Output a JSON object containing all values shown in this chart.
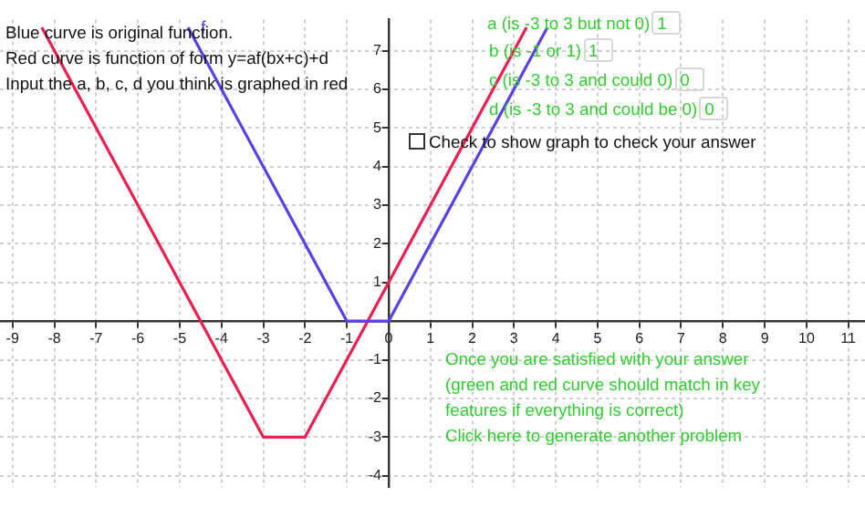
{
  "chart_data": {
    "type": "line",
    "xlim": [
      -9.3,
      11.4
    ],
    "ylim": [
      -4.3,
      7.8
    ],
    "xticks": [
      -9,
      -8,
      -7,
      -6,
      -5,
      -4,
      -3,
      -2,
      -1,
      0,
      1,
      2,
      3,
      4,
      5,
      6,
      7,
      8,
      9,
      10,
      11
    ],
    "yticks": [
      -4,
      -3,
      -2,
      -1,
      {
        "value": 0,
        "label": null
      },
      1,
      2,
      3,
      4,
      5,
      6,
      7
    ],
    "grid": true,
    "marker": "none",
    "line_style": "solid",
    "series": [
      {
        "name": "f",
        "color": "#5b3fe8",
        "x": [
          -4.8,
          -1,
          0,
          3.8
        ],
        "values": [
          7.6,
          0,
          0,
          7.6
        ]
      },
      {
        "color": "#ee1f50",
        "x": [
          -8.3,
          -3,
          -2,
          3.3
        ],
        "values": [
          7.6,
          -3,
          -3,
          7.6
        ]
      }
    ],
    "annotations": [
      "Blue curve is original function.",
      "Red curve is function of form y=af(bx+c)+d",
      "Input the a, b, c, d you think is graphed in red",
      "a (is -3 to 3 but not 0)",
      "1",
      "b (is -1 or 1)",
      "1",
      "c (is -3 to 3 and could 0)",
      "0",
      "d (is -3 to 3 and could be 0)",
      "0",
      "Check to show graph to check your answer",
      "Once you are satisfied with your answer",
      "(green and red curve should match in key",
      "features if everything is correct)",
      "Click here to generate another problem"
    ]
  }
}
